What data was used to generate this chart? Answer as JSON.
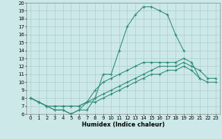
{
  "xlabel": "Humidex (Indice chaleur)",
  "xlim": [
    -0.5,
    23.5
  ],
  "ylim": [
    6,
    20
  ],
  "xticks": [
    0,
    1,
    2,
    3,
    4,
    5,
    6,
    7,
    8,
    9,
    10,
    11,
    12,
    13,
    14,
    15,
    16,
    17,
    18,
    19,
    20,
    21,
    22,
    23
  ],
  "yticks": [
    6,
    7,
    8,
    9,
    10,
    11,
    12,
    13,
    14,
    15,
    16,
    17,
    18,
    19,
    20
  ],
  "line_color": "#2e8b7a",
  "bg_color": "#cce8e8",
  "grid_color": "#aacccc",
  "line1_x": [
    0,
    1,
    2,
    3,
    4,
    5,
    6,
    7,
    8,
    9,
    10,
    11,
    12,
    13,
    14,
    15,
    16,
    17,
    18,
    19
  ],
  "line1_y": [
    8,
    7.5,
    7,
    6.5,
    6.5,
    6,
    6.5,
    6.5,
    8,
    11,
    11,
    14,
    17,
    18.5,
    19.5,
    19.5,
    19,
    18.5,
    16,
    14
  ],
  "line2_x": [
    0,
    1,
    2,
    3,
    4,
    5,
    6,
    7,
    8,
    9,
    10,
    11,
    12,
    13,
    14,
    15,
    16,
    17,
    18,
    19,
    20,
    21
  ],
  "line2_y": [
    8,
    7.5,
    7,
    6.5,
    6.5,
    6,
    6.5,
    7.5,
    9,
    10,
    10.5,
    11,
    11.5,
    12,
    12.5,
    12.5,
    12.5,
    12.5,
    12.5,
    13,
    12.5,
    10.5
  ],
  "line3_x": [
    0,
    1,
    2,
    3,
    4,
    5,
    6,
    7,
    8,
    9,
    10,
    11,
    12,
    13,
    14,
    15,
    16,
    17,
    18,
    19,
    20,
    21,
    22,
    23
  ],
  "line3_y": [
    8,
    7.5,
    7,
    7,
    7,
    7,
    7,
    7.5,
    8,
    8.5,
    9,
    9.5,
    10,
    10.5,
    11,
    11.5,
    12,
    12,
    12,
    12.5,
    12,
    11.5,
    10.5,
    10.5
  ],
  "line4_x": [
    0,
    1,
    2,
    3,
    4,
    5,
    6,
    7,
    8,
    9,
    10,
    11,
    12,
    13,
    14,
    15,
    16,
    17,
    18,
    19,
    20,
    21,
    22,
    23
  ],
  "line4_y": [
    8,
    7.5,
    7,
    7,
    7,
    7,
    7,
    7.5,
    7.5,
    8,
    8.5,
    9,
    9.5,
    10,
    10.5,
    11,
    11,
    11.5,
    11.5,
    12,
    11.5,
    10.5,
    10,
    10
  ]
}
